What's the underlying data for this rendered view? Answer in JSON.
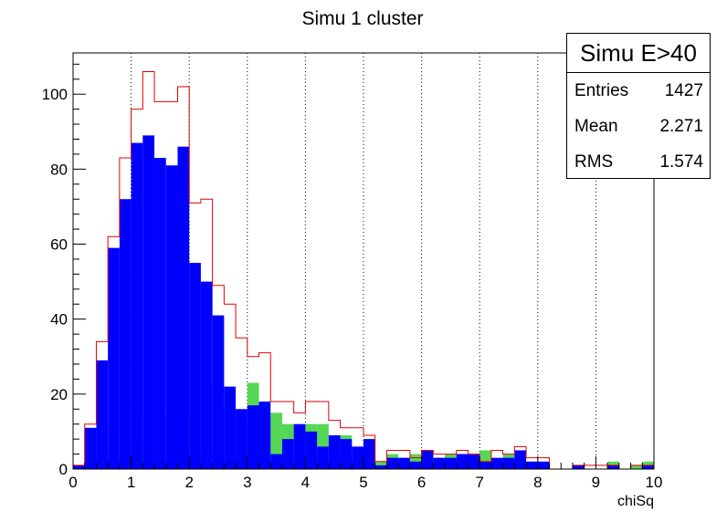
{
  "chart_data": {
    "type": "bar",
    "title": "Simu 1 cluster",
    "xlabel": "chiSq",
    "ylabel": "",
    "xlim": [
      0,
      10
    ],
    "ylim": [
      0,
      111
    ],
    "bin_width": 0.2,
    "bin_starts": [
      0,
      0.2,
      0.4,
      0.6,
      0.8,
      1.0,
      1.2,
      1.4,
      1.6,
      1.8,
      2.0,
      2.2,
      2.4,
      2.6,
      2.8,
      3.0,
      3.2,
      3.4,
      3.6,
      3.8,
      4.0,
      4.2,
      4.4,
      4.6,
      4.8,
      5.0,
      5.2,
      5.4,
      5.6,
      5.8,
      6.0,
      6.2,
      6.4,
      6.6,
      6.8,
      7.0,
      7.2,
      7.4,
      7.6,
      7.8,
      8.0,
      8.2,
      8.4,
      8.6,
      8.8,
      9.0,
      9.2,
      9.4,
      9.6,
      9.8
    ],
    "x_ticks": [
      "0",
      "1",
      "2",
      "3",
      "4",
      "5",
      "6",
      "7",
      "8",
      "9",
      "10"
    ],
    "y_ticks": [
      "0",
      "20",
      "40",
      "60",
      "80",
      "100"
    ],
    "y_tick_values": [
      0,
      20,
      40,
      60,
      80,
      100
    ],
    "grid": "vertical dotted at major x ticks",
    "series": [
      {
        "name": "",
        "style": "outline",
        "color": "#e00000",
        "values": [
          1,
          12,
          34,
          62,
          83,
          96,
          106,
          98,
          98,
          102,
          71,
          72,
          49,
          44,
          35,
          30,
          31,
          18,
          18,
          15,
          18,
          18,
          13,
          11,
          11,
          9,
          2,
          5,
          5,
          3,
          5,
          4,
          4,
          5,
          4,
          2,
          5,
          4,
          6,
          3,
          3,
          0,
          0,
          1,
          1,
          1,
          1,
          0,
          1,
          1
        ]
      },
      {
        "name": "",
        "style": "filled",
        "color": "#0000ff",
        "values": [
          1,
          11,
          29,
          59,
          72,
          87,
          89,
          83,
          81,
          86,
          55,
          50,
          41,
          22,
          16,
          17,
          18,
          4,
          8,
          12,
          10,
          6,
          9,
          8,
          6,
          8,
          1,
          3,
          3,
          2,
          5,
          3,
          3,
          4,
          4,
          2,
          3,
          3,
          5,
          2,
          2,
          0,
          0,
          1,
          0,
          0,
          1,
          0,
          0,
          1
        ]
      },
      {
        "name": "",
        "style": "filled",
        "color": "#55d655",
        "values": [
          0,
          2,
          5,
          2,
          10,
          8,
          14,
          10,
          15,
          14,
          15,
          22,
          17,
          9,
          13,
          23,
          14,
          15,
          12,
          10,
          12,
          12,
          6,
          9,
          3,
          8,
          2,
          4,
          3,
          4,
          4,
          3,
          4,
          4,
          4,
          5,
          1,
          4,
          1,
          2,
          1,
          0,
          0,
          0,
          0,
          0,
          2,
          0,
          1,
          2
        ]
      }
    ]
  },
  "stats": {
    "title": "Simu E>40",
    "entries_label": "Entries",
    "entries_value": "1427",
    "mean_label": "Mean",
    "mean_value": "2.271",
    "rms_label": "RMS",
    "rms_value": "1.574"
  }
}
